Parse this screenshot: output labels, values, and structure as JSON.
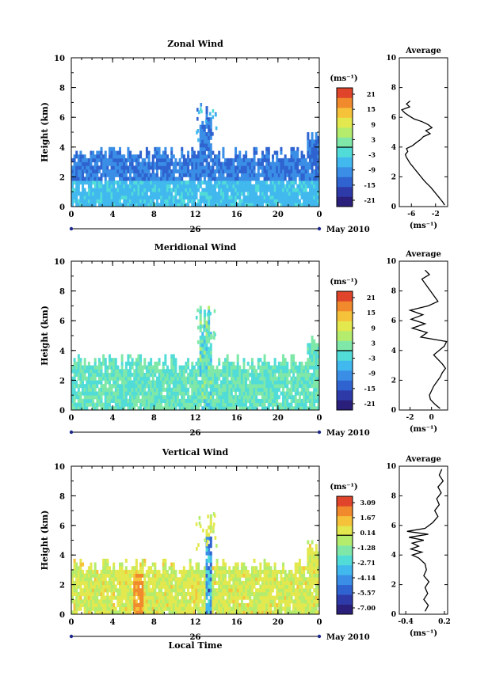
{
  "figure": {
    "xlabel": "Local Time",
    "date_label": "May 2010",
    "day_label": "26",
    "unit_label": "(ms⁻¹)",
    "avg_unit_label": "(ms⁻¹)"
  },
  "chart_data": [
    {
      "type": "heatmap",
      "title": "Zonal Wind",
      "xlabel": "",
      "ylabel": "Height (km)",
      "xlim": [
        0,
        24
      ],
      "ylim": [
        0,
        10
      ],
      "x_ticks": [
        "0",
        "4",
        "8",
        "12",
        "16",
        "20",
        "0"
      ],
      "y_ticks": [
        "0",
        "2",
        "4",
        "6",
        "8",
        "10"
      ],
      "colorbar": {
        "unit": "(ms⁻¹)",
        "ticks": [
          "21",
          "15",
          "9",
          "3",
          "-3",
          "-9",
          "-15",
          "-21"
        ],
        "range": [
          -24,
          24
        ]
      },
      "field_summary": {
        "dominant_range": [
          -15,
          -3
        ],
        "echo_top_km_typical": 3.6,
        "deep_event_hours": [
          12.5,
          13.5
        ]
      },
      "average_profile": {
        "title": "Average",
        "unit": "(ms⁻¹)",
        "x_ticks": [
          "-6",
          "-2"
        ],
        "xlim": [
          -8,
          0
        ],
        "y_ticks": [
          "0",
          "2",
          "4",
          "6",
          "8",
          "10"
        ],
        "height_km": [
          0.1,
          0.3,
          0.5,
          0.7,
          0.9,
          1.1,
          1.3,
          1.5,
          1.7,
          1.9,
          2.1,
          2.3,
          2.5,
          2.7,
          2.9,
          3.1,
          3.3,
          3.5,
          3.7,
          3.9,
          4.1,
          4.3,
          4.5,
          4.7,
          4.9,
          5.1,
          5.3,
          5.5,
          5.7,
          5.9,
          6.1,
          6.3,
          6.5,
          6.7,
          6.9,
          7.1
        ],
        "values": [
          -0.5,
          -0.8,
          -1.2,
          -1.6,
          -2.0,
          -2.4,
          -2.8,
          -3.3,
          -3.8,
          -4.2,
          -4.6,
          -5.0,
          -5.4,
          -5.8,
          -6.2,
          -6.5,
          -6.8,
          -7.0,
          -6.6,
          -6.8,
          -5.8,
          -5.2,
          -4.5,
          -4.0,
          -2.9,
          -3.6,
          -2.6,
          -3.2,
          -4.2,
          -5.6,
          -6.4,
          -7.1,
          -7.6,
          -6.3,
          -6.8,
          -6.2
        ]
      }
    },
    {
      "type": "heatmap",
      "title": "Meridional Wind",
      "xlabel": "",
      "ylabel": "Height (km)",
      "xlim": [
        0,
        24
      ],
      "ylim": [
        0,
        10
      ],
      "x_ticks": [
        "0",
        "4",
        "8",
        "12",
        "16",
        "20",
        "0"
      ],
      "y_ticks": [
        "0",
        "2",
        "4",
        "6",
        "8",
        "10"
      ],
      "colorbar": {
        "unit": "(ms⁻¹)",
        "ticks": [
          "21",
          "15",
          "9",
          "3",
          "-3",
          "-9",
          "-15",
          "-21"
        ],
        "range": [
          -24,
          24
        ]
      },
      "field_summary": {
        "dominant_range": [
          -3,
          3
        ],
        "echo_top_km_typical": 3.3,
        "deep_event_hours": [
          12.5,
          13.5
        ]
      },
      "average_profile": {
        "title": "Average",
        "unit": "(ms⁻¹)",
        "x_ticks": [
          "-2",
          "0"
        ],
        "xlim": [
          -3,
          1.5
        ],
        "y_ticks": [
          "0",
          "2",
          "4",
          "6",
          "8",
          "10"
        ],
        "height_km": [
          0.1,
          0.4,
          0.7,
          1.0,
          1.3,
          1.6,
          1.9,
          2.2,
          2.5,
          2.8,
          3.1,
          3.4,
          3.7,
          4.0,
          4.3,
          4.6,
          4.9,
          5.2,
          5.5,
          5.8,
          6.1,
          6.4,
          6.7,
          7.0,
          7.3,
          8.8,
          9.1,
          9.4
        ],
        "values": [
          0.8,
          0.3,
          -0.1,
          -0.2,
          0.0,
          0.2,
          0.5,
          0.8,
          1.0,
          1.3,
          1.0,
          0.6,
          0.2,
          0.7,
          1.2,
          1.4,
          -1.0,
          -0.4,
          -1.8,
          -0.6,
          -1.9,
          -0.8,
          -2.0,
          -0.3,
          0.6,
          -0.9,
          -0.2,
          -0.6
        ]
      }
    },
    {
      "type": "heatmap",
      "title": "Vertical Wind",
      "xlabel": "Local Time",
      "ylabel": "Height (km)",
      "xlim": [
        0,
        24
      ],
      "ylim": [
        0,
        10
      ],
      "x_ticks": [
        "0",
        "4",
        "8",
        "12",
        "16",
        "20",
        "0"
      ],
      "y_ticks": [
        "0",
        "2",
        "4",
        "6",
        "8",
        "10"
      ],
      "colorbar": {
        "unit": "(ms⁻¹)",
        "ticks": [
          "3.09",
          "1.67",
          "0.14",
          "-1.28",
          "-2.71",
          "-4.14",
          "-5.57",
          "-7.00"
        ],
        "range": [
          -7.7,
          3.8
        ]
      },
      "field_summary": {
        "dominant_range": [
          -0.6,
          1.0
        ],
        "echo_top_km_typical": 3.3,
        "updraft_event_hours": [
          6.0,
          7.0
        ],
        "downdraft_event_hours": [
          13.0,
          13.6
        ]
      },
      "average_profile": {
        "title": "Average",
        "unit": "(ms⁻¹)",
        "x_ticks": [
          "-0.4",
          "0.2"
        ],
        "xlim": [
          -0.5,
          0.25
        ],
        "y_ticks": [
          "0",
          "2",
          "4",
          "6",
          "8",
          "10"
        ],
        "height_km": [
          0.2,
          0.6,
          1.0,
          1.4,
          1.8,
          2.2,
          2.6,
          3.0,
          3.4,
          3.8,
          4.0,
          4.2,
          4.4,
          4.6,
          4.8,
          5.0,
          5.2,
          5.4,
          5.6,
          5.8,
          6.2,
          6.6,
          7.0,
          7.4,
          7.8,
          8.2,
          8.6,
          9.0,
          9.4,
          9.8
        ],
        "values": [
          -0.1,
          -0.05,
          -0.12,
          -0.06,
          -0.1,
          -0.04,
          -0.12,
          -0.08,
          -0.1,
          -0.2,
          -0.3,
          -0.15,
          -0.32,
          -0.2,
          -0.3,
          -0.12,
          -0.35,
          -0.05,
          -0.38,
          -0.1,
          0.02,
          0.1,
          0.05,
          0.12,
          0.08,
          0.15,
          0.1,
          0.18,
          0.12,
          0.16
        ]
      }
    }
  ]
}
